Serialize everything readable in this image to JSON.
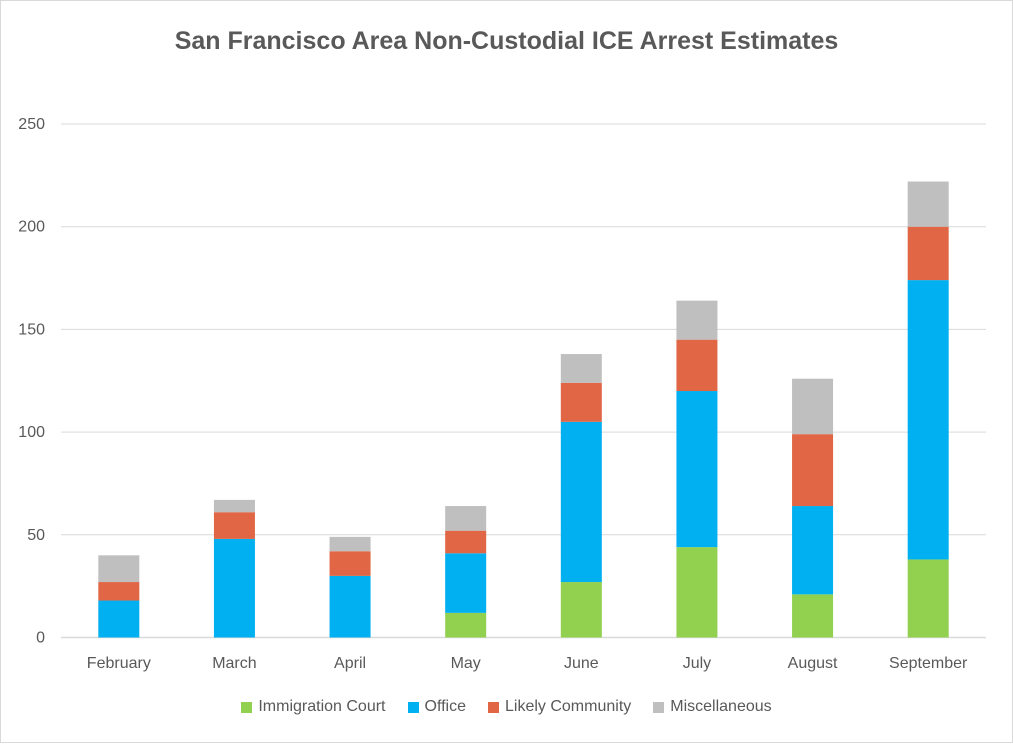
{
  "chart_data": {
    "type": "bar",
    "stacked": true,
    "title": "San Francisco Area Non-Custodial ICE Arrest Estimates",
    "xlabel": "",
    "ylabel": "",
    "ylim": [
      0,
      250
    ],
    "yticks": [
      0,
      50,
      100,
      150,
      200,
      250
    ],
    "grid": true,
    "legend_position": "bottom",
    "categories": [
      "February",
      "March",
      "April",
      "May",
      "June",
      "July",
      "August",
      "September"
    ],
    "series": [
      {
        "name": "Immigration Court",
        "color": "#92d050",
        "values": [
          0,
          0,
          0,
          12,
          27,
          44,
          21,
          38
        ]
      },
      {
        "name": "Office",
        "color": "#00b0f0",
        "values": [
          18,
          48,
          30,
          29,
          78,
          76,
          43,
          136
        ]
      },
      {
        "name": "Likely Community",
        "color": "#e06645",
        "values": [
          9,
          13,
          12,
          11,
          19,
          25,
          35,
          26
        ]
      },
      {
        "name": "Miscellaneous",
        "color": "#bfbfbf",
        "values": [
          13,
          6,
          7,
          12,
          14,
          19,
          27,
          22
        ]
      }
    ]
  }
}
